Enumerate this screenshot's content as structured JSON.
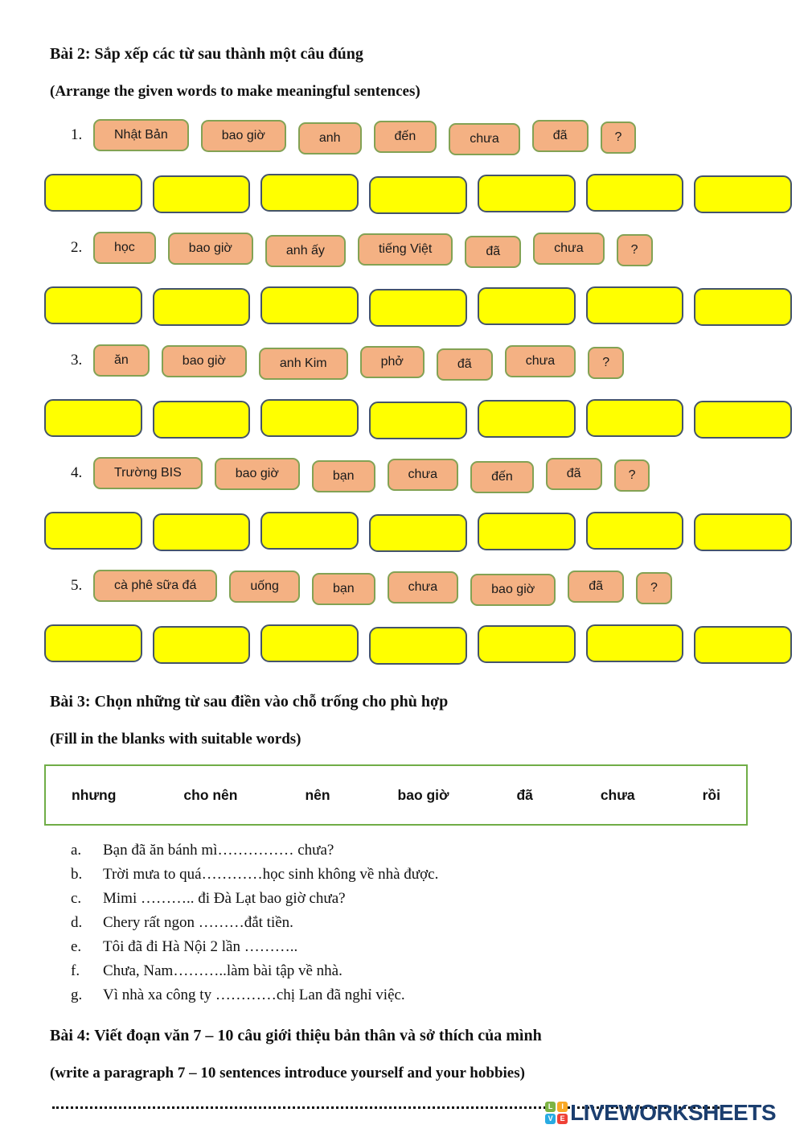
{
  "exercise2": {
    "title": "Bài 2: Sắp xếp các từ sau thành một câu đúng",
    "subtitle": "(Arrange the given words to make meaningful sentences)",
    "questions": [
      {
        "number": "1.",
        "tiles": [
          "Nhật Bản",
          "bao giờ",
          "anh",
          "đến",
          "chưa",
          "đã",
          "?"
        ],
        "answer_slots": 7
      },
      {
        "number": "2.",
        "tiles": [
          "học",
          "bao giờ",
          "anh ấy",
          "tiếng Việt",
          "đã",
          "chưa",
          "?"
        ],
        "answer_slots": 7
      },
      {
        "number": "3.",
        "tiles": [
          "ăn",
          "bao giờ",
          "anh Kim",
          "phở",
          "đã",
          "chưa",
          "?"
        ],
        "answer_slots": 7
      },
      {
        "number": "4.",
        "tiles": [
          "Trường BIS",
          "bao giờ",
          "bạn",
          "chưa",
          "đến",
          "đã",
          "?"
        ],
        "answer_slots": 7
      },
      {
        "number": "5.",
        "tiles": [
          "cà phê sữa đá",
          "uống",
          "bạn",
          "chưa",
          "bao giờ",
          "đã",
          "?"
        ],
        "answer_slots": 7
      }
    ]
  },
  "exercise3": {
    "title": "Bài 3: Chọn những từ sau điền vào chỗ trống cho phù hợp",
    "subtitle": "(Fill in the blanks with suitable words)",
    "word_bank": [
      "nhưng",
      "cho nên",
      "nên",
      "bao giờ",
      "đã",
      "chưa",
      "rồi"
    ],
    "items": [
      {
        "letter": "a.",
        "text": "Bạn đã ăn bánh mì…………… chưa?"
      },
      {
        "letter": "b.",
        "text": "Trời mưa to quá…………học sinh không về nhà được."
      },
      {
        "letter": "c.",
        "text": "Mimi ……….. đi Đà Lạt bao giờ chưa?"
      },
      {
        "letter": "d.",
        "text": "Chery rất ngon ………đắt tiền."
      },
      {
        "letter": "e.",
        "text": "Tôi đã đi Hà Nội 2 lần ……….."
      },
      {
        "letter": "f.",
        "text": "Chưa, Nam………..làm bài tập về nhà."
      },
      {
        "letter": "g.",
        "text": "Vì nhà xa công ty …………chị Lan đã nghỉ việc."
      }
    ]
  },
  "exercise4": {
    "title": "Bài 4: Viết đoạn văn 7 – 10 câu giới thiệu bản thân và sở thích của mình",
    "subtitle": "(write a paragraph 7 – 10 sentences introduce yourself and your hobbies)"
  },
  "footer": {
    "brand": "LIVEWORKSHEETS",
    "brand_color": "#1B3E6F",
    "logo_letters": [
      "L",
      "I",
      "V",
      "E"
    ],
    "logo_colors": [
      "#7DB343",
      "#F9A825",
      "#29ABE2",
      "#EF4136"
    ]
  },
  "colors": {
    "tile_fill": "#F4B183",
    "tile_border": "#83A254",
    "slot_fill": "#FFFF00",
    "slot_border": "#44546A",
    "word_bank_border": "#70AD47"
  }
}
